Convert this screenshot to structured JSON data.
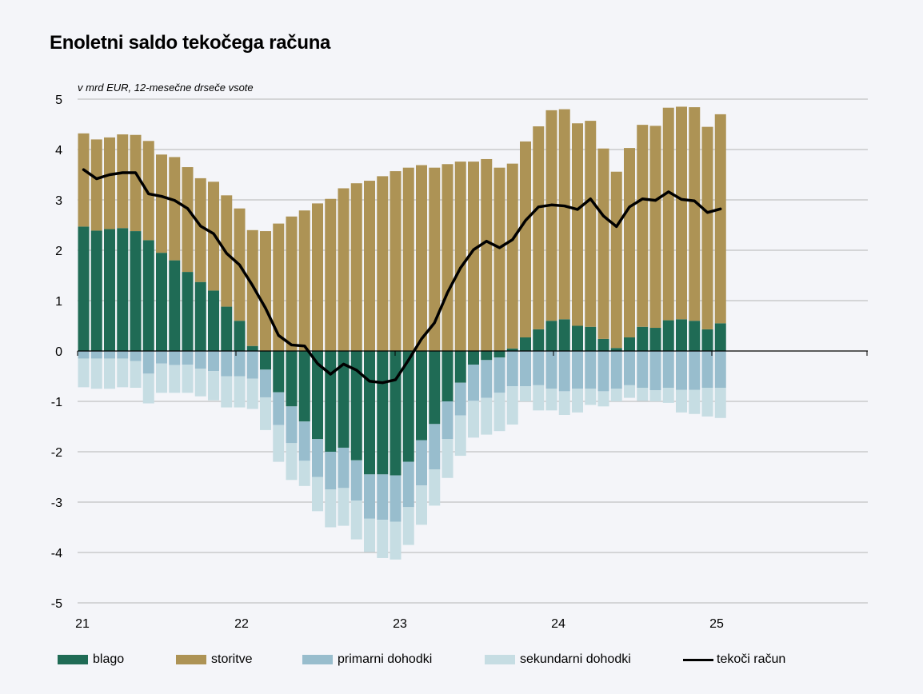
{
  "chart_data": {
    "type": "bar",
    "title": "Enoletni saldo tekočega računa",
    "subtitle": "v mrd EUR, 12-mesečne drseče vsote",
    "ylim": [
      -5,
      5
    ],
    "yticks": [
      "5",
      "4",
      "3",
      "2",
      "1",
      "0",
      "-1",
      "-2",
      "-3",
      "-4",
      "-5"
    ],
    "xticks": [
      "21",
      "22",
      "23",
      "24",
      "25"
    ],
    "grid": true,
    "legend_position": "bottom",
    "colors": {
      "blago": "#1f6b55",
      "storitve": "#ad9355",
      "primarni": "#98bdcd",
      "sekundarni": "#c6dde3",
      "line": "#000000"
    },
    "series": [
      {
        "name": "blago",
        "values": [
          2.47,
          2.39,
          2.42,
          2.44,
          2.38,
          2.2,
          1.95,
          1.8,
          1.57,
          1.37,
          1.2,
          0.88,
          0.6,
          0.1,
          -0.37,
          -0.82,
          -1.1,
          -1.4,
          -1.75,
          -2.0,
          -1.92,
          -2.17,
          -2.45,
          -2.45,
          -2.47,
          -2.2,
          -1.77,
          -1.45,
          -1.0,
          -0.63,
          -0.27,
          -0.18,
          -0.13,
          0.05,
          0.27,
          0.43,
          0.6,
          0.63,
          0.5,
          0.48,
          0.24,
          0.06,
          0.27,
          0.48,
          0.46,
          0.61,
          0.63,
          0.6,
          0.43,
          0.55
        ]
      },
      {
        "name": "storitve",
        "values": [
          1.85,
          1.81,
          1.82,
          1.86,
          1.91,
          1.97,
          1.95,
          2.05,
          2.08,
          2.06,
          2.16,
          2.21,
          2.23,
          2.3,
          2.38,
          2.53,
          2.67,
          2.79,
          2.93,
          3.02,
          3.23,
          3.33,
          3.38,
          3.47,
          3.57,
          3.64,
          3.69,
          3.64,
          3.71,
          3.76,
          3.76,
          3.81,
          3.64,
          3.67,
          3.89,
          4.03,
          4.18,
          4.17,
          4.02,
          4.09,
          3.78,
          3.5,
          3.76,
          4.01,
          4.01,
          4.22,
          4.22,
          4.24,
          4.02,
          4.15
        ]
      },
      {
        "name": "primarni dohodki",
        "values": [
          -0.15,
          -0.15,
          -0.15,
          -0.15,
          -0.2,
          -0.45,
          -0.25,
          -0.28,
          -0.27,
          -0.35,
          -0.4,
          -0.5,
          -0.5,
          -0.55,
          -0.55,
          -0.65,
          -0.73,
          -0.78,
          -0.75,
          -0.75,
          -0.8,
          -0.8,
          -0.88,
          -0.9,
          -0.92,
          -0.9,
          -0.9,
          -0.9,
          -0.75,
          -0.65,
          -0.72,
          -0.75,
          -0.7,
          -0.7,
          -0.7,
          -0.68,
          -0.75,
          -0.8,
          -0.75,
          -0.75,
          -0.8,
          -0.75,
          -0.68,
          -0.73,
          -0.78,
          -0.73,
          -0.77,
          -0.77,
          -0.73,
          -0.73
        ]
      },
      {
        "name": "sekundarni dohodki",
        "values": [
          -0.57,
          -0.6,
          -0.6,
          -0.57,
          -0.53,
          -0.59,
          -0.58,
          -0.55,
          -0.56,
          -0.55,
          -0.58,
          -0.62,
          -0.62,
          -0.6,
          -0.65,
          -0.73,
          -0.73,
          -0.5,
          -0.68,
          -0.75,
          -0.75,
          -0.77,
          -0.66,
          -0.76,
          -0.75,
          -0.75,
          -0.78,
          -0.72,
          -0.77,
          -0.8,
          -0.73,
          -0.73,
          -0.76,
          -0.76,
          -0.3,
          -0.5,
          -0.43,
          -0.47,
          -0.47,
          -0.32,
          -0.3,
          -0.25,
          -0.25,
          -0.26,
          -0.22,
          -0.3,
          -0.45,
          -0.48,
          -0.57,
          -0.6
        ]
      },
      {
        "name": "tekoči račun",
        "values": [
          3.6,
          3.42,
          3.5,
          3.54,
          3.54,
          3.12,
          3.07,
          2.99,
          2.83,
          2.48,
          2.33,
          1.94,
          1.71,
          1.3,
          0.85,
          0.31,
          0.12,
          0.1,
          -0.25,
          -0.46,
          -0.26,
          -0.38,
          -0.6,
          -0.63,
          -0.57,
          -0.18,
          0.24,
          0.56,
          1.16,
          1.65,
          2.01,
          2.18,
          2.05,
          2.21,
          2.59,
          2.86,
          2.9,
          2.88,
          2.81,
          3.02,
          2.68,
          2.47,
          2.86,
          3.02,
          2.99,
          3.16,
          3.01,
          2.98,
          2.75,
          2.82
        ]
      }
    ]
  },
  "legend": {
    "blago": "blago",
    "storitve": "storitve",
    "primarni": "primarni dohodki",
    "sekundarni": "sekundarni dohodki",
    "line": "tekoči račun"
  }
}
